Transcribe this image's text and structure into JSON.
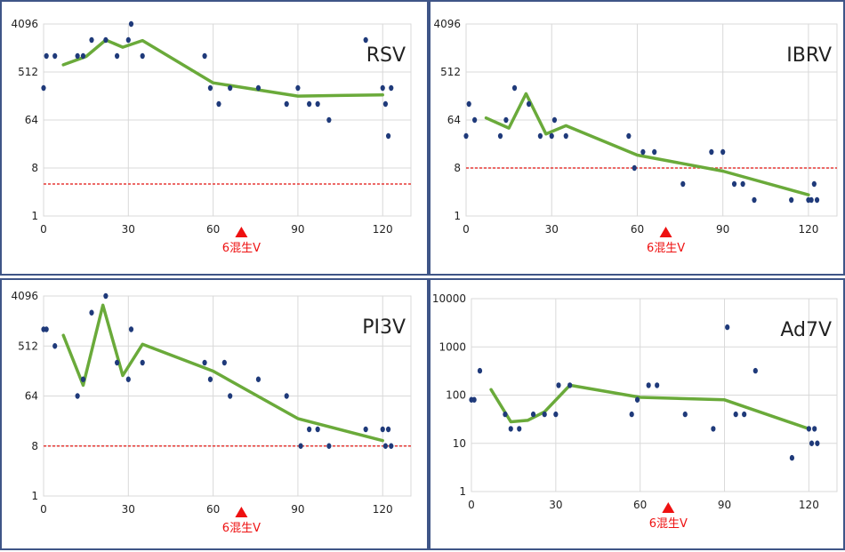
{
  "colors": {
    "trend": "#6aaa3a",
    "point": "#1f3a7a",
    "threshold": "#e53935",
    "marker": "#ee1111",
    "grid": "#d9d9d9",
    "border": "#3f5587"
  },
  "marker_label": "6混生V",
  "marker_day": 70,
  "chart_data": [
    {
      "type": "scatter",
      "title": "RSV",
      "xlabel": "",
      "ylabel": "",
      "xlim": [
        0,
        130
      ],
      "x_ticks": [
        0,
        30,
        60,
        90,
        120
      ],
      "y_scale": "log2",
      "ylim": [
        1,
        4096
      ],
      "y_ticks": [
        1,
        8,
        64,
        512,
        4096
      ],
      "threshold": 4,
      "points": [
        [
          0,
          256
        ],
        [
          1,
          1024
        ],
        [
          4,
          1024
        ],
        [
          12,
          1024
        ],
        [
          14,
          1024
        ],
        [
          17,
          2048
        ],
        [
          22,
          2048
        ],
        [
          26,
          1024
        ],
        [
          30,
          2048
        ],
        [
          31,
          4096
        ],
        [
          35,
          1024
        ],
        [
          57,
          1024
        ],
        [
          59,
          256
        ],
        [
          62,
          128
        ],
        [
          66,
          256
        ],
        [
          76,
          256
        ],
        [
          86,
          128
        ],
        [
          90,
          256
        ],
        [
          94,
          128
        ],
        [
          97,
          128
        ],
        [
          101,
          64
        ],
        [
          114,
          2048
        ],
        [
          120,
          256
        ],
        [
          121,
          128
        ],
        [
          122,
          32
        ],
        [
          123,
          256
        ]
      ],
      "trend": [
        [
          7,
          700
        ],
        [
          15,
          1000
        ],
        [
          22,
          2048
        ],
        [
          28,
          1500
        ],
        [
          35,
          2000
        ],
        [
          60,
          320
        ],
        [
          90,
          180
        ],
        [
          120,
          190
        ]
      ]
    },
    {
      "type": "scatter",
      "title": "IBRV",
      "xlabel": "",
      "ylabel": "",
      "xlim": [
        0,
        130
      ],
      "x_ticks": [
        0,
        30,
        60,
        90,
        120
      ],
      "y_scale": "log2",
      "ylim": [
        1,
        4096
      ],
      "y_ticks": [
        1,
        8,
        64,
        512,
        4096
      ],
      "threshold": 8,
      "points": [
        [
          0,
          32
        ],
        [
          1,
          128
        ],
        [
          3,
          64
        ],
        [
          12,
          32
        ],
        [
          14,
          64
        ],
        [
          17,
          256
        ],
        [
          22,
          128
        ],
        [
          26,
          32
        ],
        [
          30,
          32
        ],
        [
          31,
          64
        ],
        [
          35,
          32
        ],
        [
          57,
          32
        ],
        [
          59,
          8
        ],
        [
          62,
          16
        ],
        [
          66,
          16
        ],
        [
          76,
          4
        ],
        [
          86,
          16
        ],
        [
          90,
          16
        ],
        [
          94,
          4
        ],
        [
          97,
          4
        ],
        [
          101,
          2
        ],
        [
          114,
          2
        ],
        [
          120,
          2
        ],
        [
          121,
          2
        ],
        [
          122,
          4
        ],
        [
          123,
          2
        ]
      ],
      "trend": [
        [
          7,
          70
        ],
        [
          15,
          45
        ],
        [
          21,
          200
        ],
        [
          28,
          35
        ],
        [
          35,
          50
        ],
        [
          60,
          14
        ],
        [
          90,
          7
        ],
        [
          120,
          2.5
        ]
      ]
    },
    {
      "type": "scatter",
      "title": "PI3V",
      "xlabel": "",
      "ylabel": "",
      "xlim": [
        0,
        130
      ],
      "x_ticks": [
        0,
        30,
        60,
        90,
        120
      ],
      "y_scale": "log2",
      "ylim": [
        1,
        4096
      ],
      "y_ticks": [
        1,
        8,
        64,
        512,
        4096
      ],
      "threshold": 8,
      "points": [
        [
          0,
          1024
        ],
        [
          1,
          1024
        ],
        [
          4,
          512
        ],
        [
          12,
          64
        ],
        [
          14,
          128
        ],
        [
          17,
          2048
        ],
        [
          22,
          4096
        ],
        [
          26,
          256
        ],
        [
          30,
          128
        ],
        [
          31,
          1024
        ],
        [
          35,
          256
        ],
        [
          57,
          256
        ],
        [
          59,
          128
        ],
        [
          64,
          256
        ],
        [
          66,
          64
        ],
        [
          76,
          128
        ],
        [
          86,
          64
        ],
        [
          91,
          8
        ],
        [
          94,
          16
        ],
        [
          97,
          16
        ],
        [
          101,
          8
        ],
        [
          114,
          16
        ],
        [
          120,
          16
        ],
        [
          121,
          8
        ],
        [
          122,
          16
        ],
        [
          123,
          8
        ]
      ],
      "trend": [
        [
          7,
          800
        ],
        [
          14,
          100
        ],
        [
          21,
          2800
        ],
        [
          28,
          150
        ],
        [
          35,
          550
        ],
        [
          60,
          180
        ],
        [
          90,
          25
        ],
        [
          120,
          10
        ]
      ]
    },
    {
      "type": "scatter",
      "title": "Ad7V",
      "xlabel": "",
      "ylabel": "",
      "xlim": [
        0,
        130
      ],
      "x_ticks": [
        0,
        30,
        60,
        90,
        120
      ],
      "y_scale": "log10",
      "ylim": [
        1,
        10000
      ],
      "y_ticks": [
        1,
        10,
        100,
        1000,
        10000
      ],
      "threshold": null,
      "points": [
        [
          0,
          80
        ],
        [
          1,
          80
        ],
        [
          3,
          320
        ],
        [
          12,
          40
        ],
        [
          14,
          20
        ],
        [
          17,
          20
        ],
        [
          22,
          40
        ],
        [
          26,
          40
        ],
        [
          30,
          40
        ],
        [
          31,
          160
        ],
        [
          35,
          160
        ],
        [
          57,
          40
        ],
        [
          59,
          80
        ],
        [
          63,
          160
        ],
        [
          66,
          160
        ],
        [
          76,
          40
        ],
        [
          86,
          20
        ],
        [
          91,
          2560
        ],
        [
          94,
          40
        ],
        [
          97,
          40
        ],
        [
          101,
          320
        ],
        [
          114,
          5
        ],
        [
          120,
          20
        ],
        [
          121,
          10
        ],
        [
          122,
          20
        ],
        [
          123,
          10
        ]
      ],
      "trend": [
        [
          7,
          130
        ],
        [
          14,
          28
        ],
        [
          20,
          30
        ],
        [
          26,
          45
        ],
        [
          35,
          160
        ],
        [
          60,
          90
        ],
        [
          90,
          80
        ],
        [
          120,
          20
        ]
      ]
    }
  ]
}
